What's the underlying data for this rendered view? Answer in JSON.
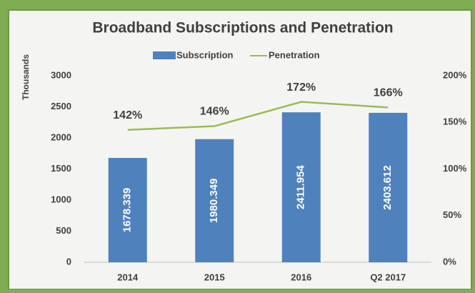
{
  "chart_data": {
    "type": "bar_line",
    "title": "Broadband Subscriptions and Penetration",
    "y_axis_label": "Thousands",
    "categories": [
      "2014",
      "2015",
      "2016",
      "Q2 2017"
    ],
    "series": [
      {
        "name": "Subscription",
        "color": "#4f81bd",
        "values": [
          1678.339,
          1980.349,
          2411.954,
          2403.612
        ]
      },
      {
        "name": "Penetration",
        "color": "#9bbb59",
        "axis": "y2",
        "values": [
          142,
          146,
          172,
          166
        ],
        "value_labels": [
          "142%",
          "146%",
          "172%",
          "166%"
        ]
      }
    ],
    "ylim": [
      0,
      3000
    ],
    "yticks": [
      0,
      500,
      1000,
      1500,
      2000,
      2500,
      3000
    ],
    "y2lim": [
      0,
      200
    ],
    "y2ticks": [
      {
        "value": 0,
        "label": "0%"
      },
      {
        "value": 50,
        "label": "50%"
      },
      {
        "value": 100,
        "label": "100%"
      },
      {
        "value": 150,
        "label": "150%"
      },
      {
        "value": 200,
        "label": "200%"
      }
    ],
    "legend": "top",
    "grid": false
  }
}
